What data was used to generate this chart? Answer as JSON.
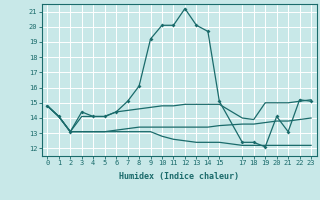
{
  "xlabel": "Humidex (Indice chaleur)",
  "background_color": "#c8e8e8",
  "grid_color": "#ffffff",
  "line_color": "#1a6b6b",
  "xlim": [
    -0.5,
    23.5
  ],
  "ylim": [
    11.5,
    21.5
  ],
  "yticks": [
    12,
    13,
    14,
    15,
    16,
    17,
    18,
    19,
    20,
    21
  ],
  "xticks": [
    0,
    1,
    2,
    3,
    4,
    5,
    6,
    7,
    8,
    9,
    10,
    11,
    12,
    13,
    14,
    15,
    17,
    18,
    19,
    20,
    21,
    22,
    23
  ],
  "xtick_labels": [
    "0",
    "1",
    "2",
    "3",
    "4",
    "5",
    "6",
    "7",
    "8",
    "9",
    "10",
    "11",
    "12",
    "13",
    "14",
    "15",
    "17",
    "18",
    "19",
    "20",
    "21",
    "22",
    "23"
  ],
  "line1_x": [
    0,
    1,
    2,
    3,
    4,
    5,
    6,
    7,
    8,
    9,
    10,
    11,
    12,
    13,
    14,
    15,
    17,
    18,
    19,
    20,
    21,
    22,
    23
  ],
  "line1_y": [
    14.8,
    14.1,
    13.1,
    14.4,
    14.1,
    14.1,
    14.4,
    15.1,
    16.1,
    19.2,
    20.1,
    20.1,
    21.2,
    20.1,
    19.7,
    15.1,
    12.4,
    12.4,
    12.1,
    14.1,
    13.1,
    15.2,
    15.1
  ],
  "line2_x": [
    0,
    1,
    2,
    3,
    4,
    5,
    6,
    7,
    8,
    9,
    10,
    11,
    12,
    13,
    14,
    15,
    17,
    18,
    19,
    20,
    21,
    22,
    23
  ],
  "line2_y": [
    14.8,
    14.1,
    13.1,
    14.1,
    14.1,
    14.1,
    14.4,
    14.5,
    14.6,
    14.7,
    14.8,
    14.8,
    14.9,
    14.9,
    14.9,
    14.9,
    14.0,
    13.9,
    15.0,
    15.0,
    15.0,
    15.1,
    15.2
  ],
  "line3_x": [
    0,
    1,
    2,
    3,
    4,
    5,
    6,
    7,
    8,
    9,
    10,
    11,
    12,
    13,
    14,
    15,
    17,
    18,
    19,
    20,
    21,
    22,
    23
  ],
  "line3_y": [
    14.8,
    14.1,
    13.1,
    13.1,
    13.1,
    13.1,
    13.2,
    13.3,
    13.4,
    13.4,
    13.4,
    13.4,
    13.4,
    13.4,
    13.4,
    13.5,
    13.6,
    13.6,
    13.7,
    13.8,
    13.8,
    13.9,
    14.0
  ],
  "line4_x": [
    0,
    1,
    2,
    3,
    4,
    5,
    6,
    7,
    8,
    9,
    10,
    11,
    12,
    13,
    14,
    15,
    17,
    18,
    19,
    20,
    21,
    22,
    23
  ],
  "line4_y": [
    14.8,
    14.1,
    13.1,
    13.1,
    13.1,
    13.1,
    13.1,
    13.1,
    13.1,
    13.1,
    12.8,
    12.6,
    12.5,
    12.4,
    12.4,
    12.4,
    12.2,
    12.2,
    12.2,
    12.2,
    12.2,
    12.2,
    12.2
  ]
}
